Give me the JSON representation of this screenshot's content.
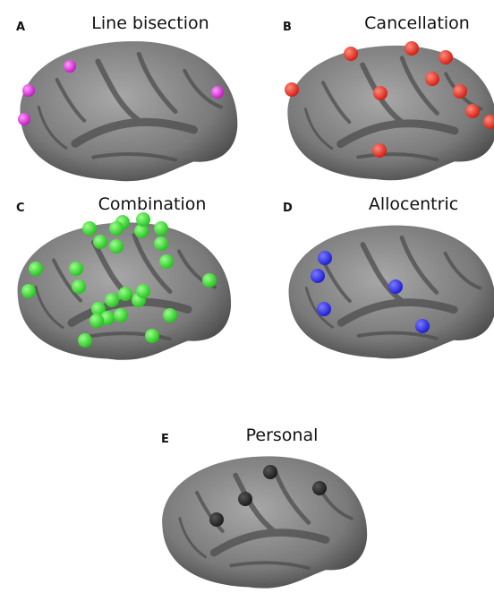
{
  "panels": [
    {
      "letter": "A",
      "title": "Line bisection"
    },
    {
      "letter": "B",
      "title": "Cancellation"
    },
    {
      "letter": "C",
      "title": "Combination"
    },
    {
      "letter": "D",
      "title": "Allocentric"
    },
    {
      "letter": "E",
      "title": "Personal"
    }
  ]
}
